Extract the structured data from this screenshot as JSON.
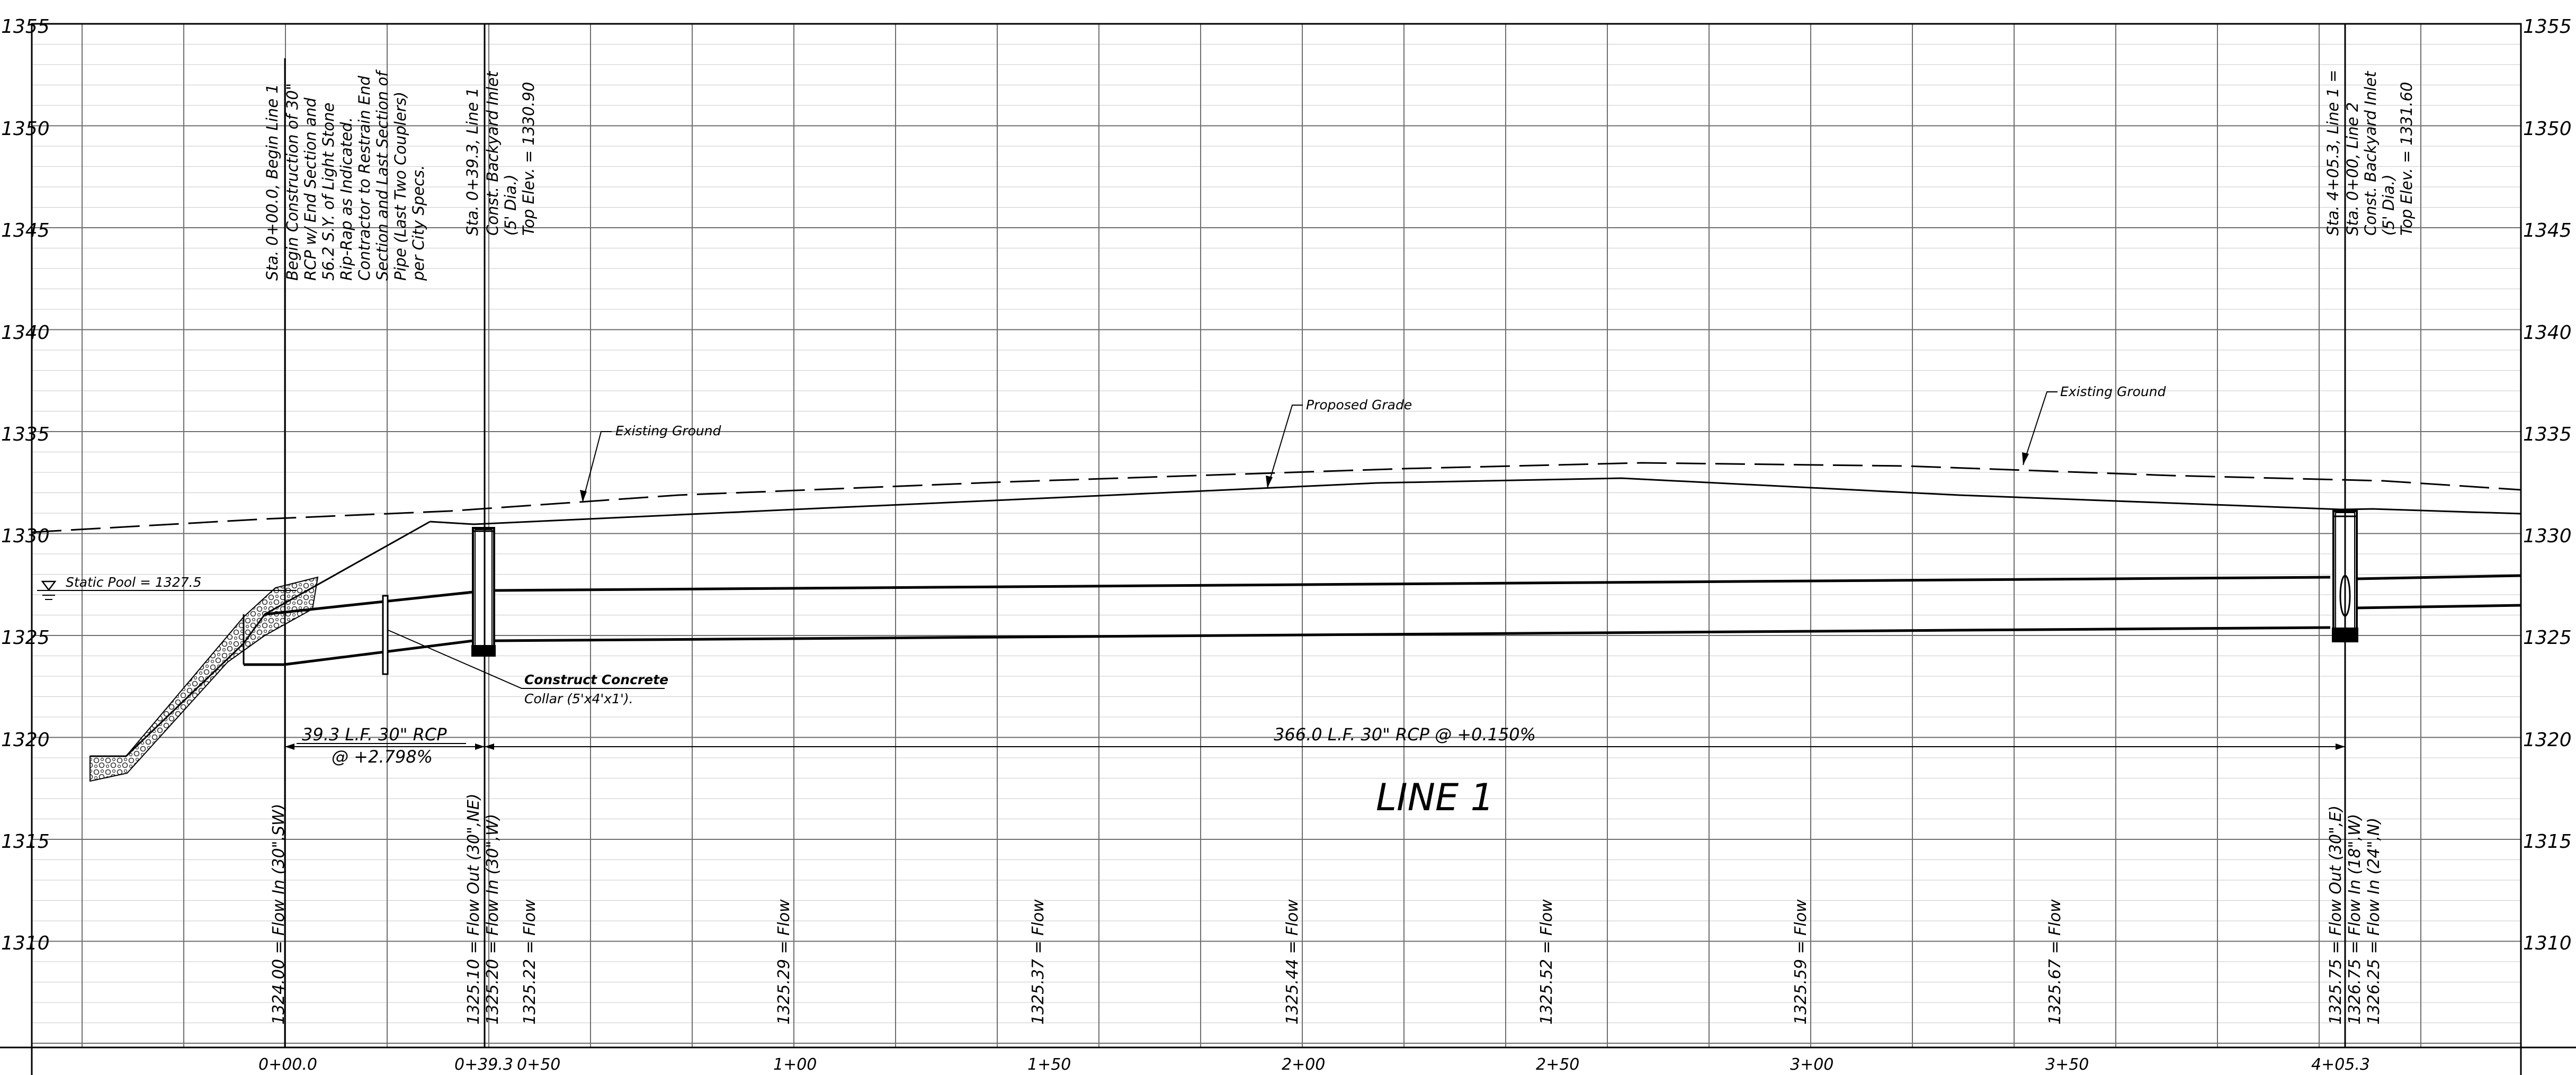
{
  "elevation_labels": [
    "1355",
    "1350",
    "1345",
    "1340",
    "1335",
    "1330",
    "1325",
    "1320",
    "1315",
    "1310"
  ],
  "station_labels": [
    "0+00.0",
    "0+39.3",
    "0+50",
    "1+00",
    "1+50",
    "2+00",
    "2+50",
    "3+00",
    "3+50",
    "4+05.3"
  ],
  "notes": {
    "begin_line": [
      "Sta. 0+00.0, Begin Line 1",
      "Begin Construction of 30\"",
      "RCP w/ End Section and",
      "56.2 S.Y. of Light Stone",
      "Rip-Rap as Indicated.",
      "Contractor to Restrain End",
      "Section and Last Section of",
      "Pipe (Last Two Couplers)",
      "per City Specs."
    ],
    "inlet_1": [
      "Sta. 0+39.3, Line 1",
      "Const. Backyard Inlet",
      "(5' Dia.)",
      "Top Elev. = 1330.90"
    ],
    "inlet_2": [
      "Sta. 4+05.3, Line 1 =",
      "Sta. 0+00, Line 2",
      "Const. Backyard Inlet",
      "(5' Dia.)",
      "Top Elev. = 1331.60"
    ]
  },
  "callouts": {
    "existing_ground_left": "Existing Ground",
    "proposed_grade": "Proposed Grade",
    "existing_ground_right": "Existing Ground",
    "static_pool": "Static Pool = 1327.5",
    "collar_line1": "Construct Concrete",
    "collar_line2": "Collar (5'x4'x1')."
  },
  "dimensions": {
    "seg1_line1": "39.3 L.F. 30\" RCP",
    "seg1_line2": "@ +2.798%",
    "seg2": "366.0 L.F. 30\" RCP @ +0.150%"
  },
  "profile_title": "LINE 1",
  "flow_labels": [
    "1324.00 = Flow In (30\",SW)",
    "1325.10 = Flow Out (30\",NE)",
    "1325.20 = Flow In (30\",W)",
    "1325.22 = Flow",
    "1325.29 = Flow",
    "1325.37 = Flow",
    "1325.44 = Flow",
    "1325.52 = Flow",
    "1325.59 = Flow",
    "1325.67 = Flow",
    "1325.75 = Flow Out (30\",E)",
    "1326.75 = Flow In (18\",W)",
    "1326.25 = Flow In (24\",N)"
  ]
}
